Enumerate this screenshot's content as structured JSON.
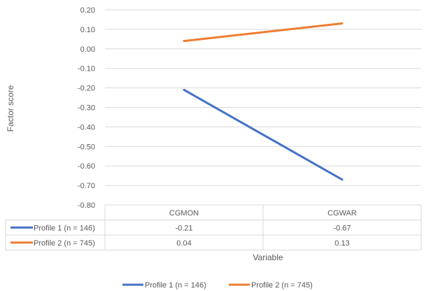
{
  "chart_data": {
    "type": "line",
    "categories": [
      "CGMON",
      "CGWAR"
    ],
    "series": [
      {
        "name": "Profile 1 (n = 146)",
        "values": [
          -0.21,
          -0.67
        ],
        "color": "#4472C4"
      },
      {
        "name": "Profile 2 (n = 745)",
        "values": [
          0.04,
          0.13
        ],
        "color": "#ED7D31"
      }
    ],
    "table_values": [
      [
        "-0.21",
        "-0.67"
      ],
      [
        "0.04",
        "0.13"
      ]
    ],
    "yticks": [
      "0.20",
      "0.10",
      "0.00",
      "-0.10",
      "-0.20",
      "-0.30",
      "-0.40",
      "-0.50",
      "-0.60",
      "-0.70",
      "-0.80"
    ],
    "ylim": [
      -0.8,
      0.2
    ],
    "ylabel": "Factor score",
    "xlabel": "Variable",
    "grid": true,
    "legend": "bottom",
    "data_table": true
  }
}
